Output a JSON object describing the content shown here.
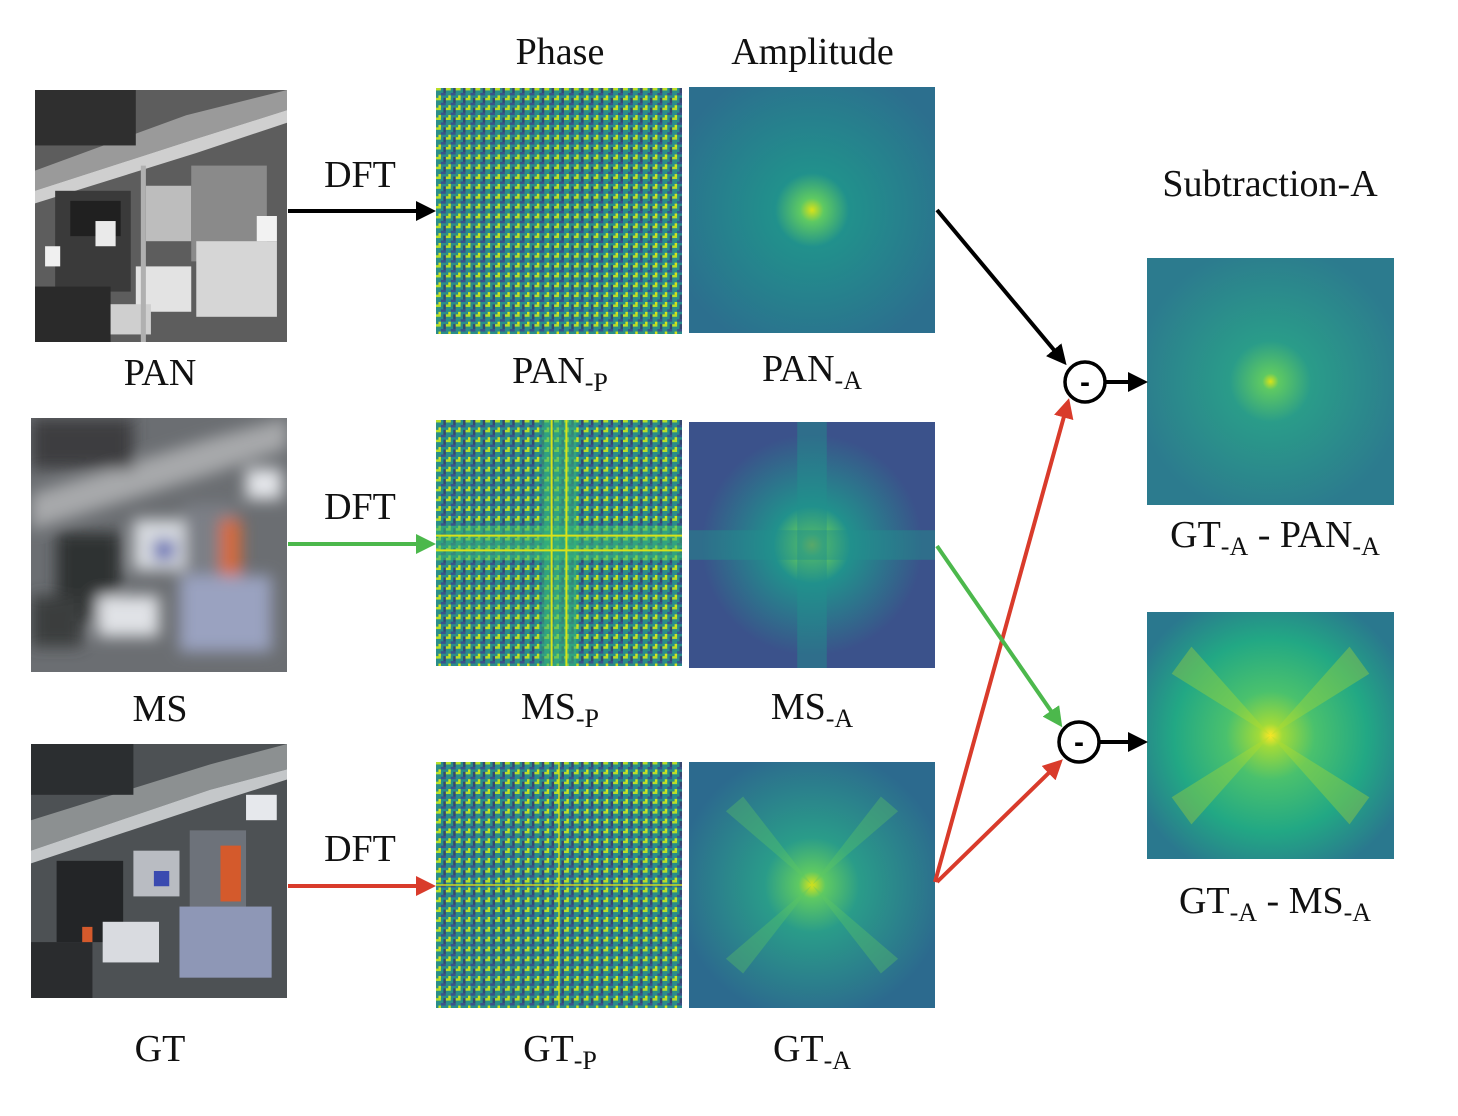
{
  "headers": {
    "phase": "Phase",
    "amplitude": "Amplitude",
    "subtraction": "Subtraction-A"
  },
  "rows": [
    {
      "input": "PAN",
      "dft": "DFT",
      "phase": {
        "base": "PAN",
        "sub": "-P"
      },
      "amp": {
        "base": "PAN",
        "sub": "-A"
      },
      "arrow_color": "#000000"
    },
    {
      "input": "MS",
      "dft": "DFT",
      "phase": {
        "base": "MS",
        "sub": "-P"
      },
      "amp": {
        "base": "MS",
        "sub": "-A"
      },
      "arrow_color": "#4cb84c"
    },
    {
      "input": "GT",
      "dft": "DFT",
      "phase": {
        "base": "GT",
        "sub": "-P"
      },
      "amp": {
        "base": "GT",
        "sub": "-A"
      },
      "arrow_color": "#d93b2b"
    }
  ],
  "results": [
    {
      "a": {
        "base": "GT",
        "sub": "-A"
      },
      "minus": "-",
      "b": {
        "base": "PAN",
        "sub": "-A"
      }
    },
    {
      "a": {
        "base": "GT",
        "sub": "-A"
      },
      "minus": "-",
      "b": {
        "base": "MS",
        "sub": "-A"
      }
    }
  ],
  "operator_symbol": "-",
  "colors": {
    "pan_arrow": "#000000",
    "ms_arrow": "#4cb84c",
    "gt_arrow": "#d93b2b",
    "viridis_dark": "#3b528b",
    "viridis_mid": "#21918c",
    "viridis_bright": "#d8e219"
  }
}
